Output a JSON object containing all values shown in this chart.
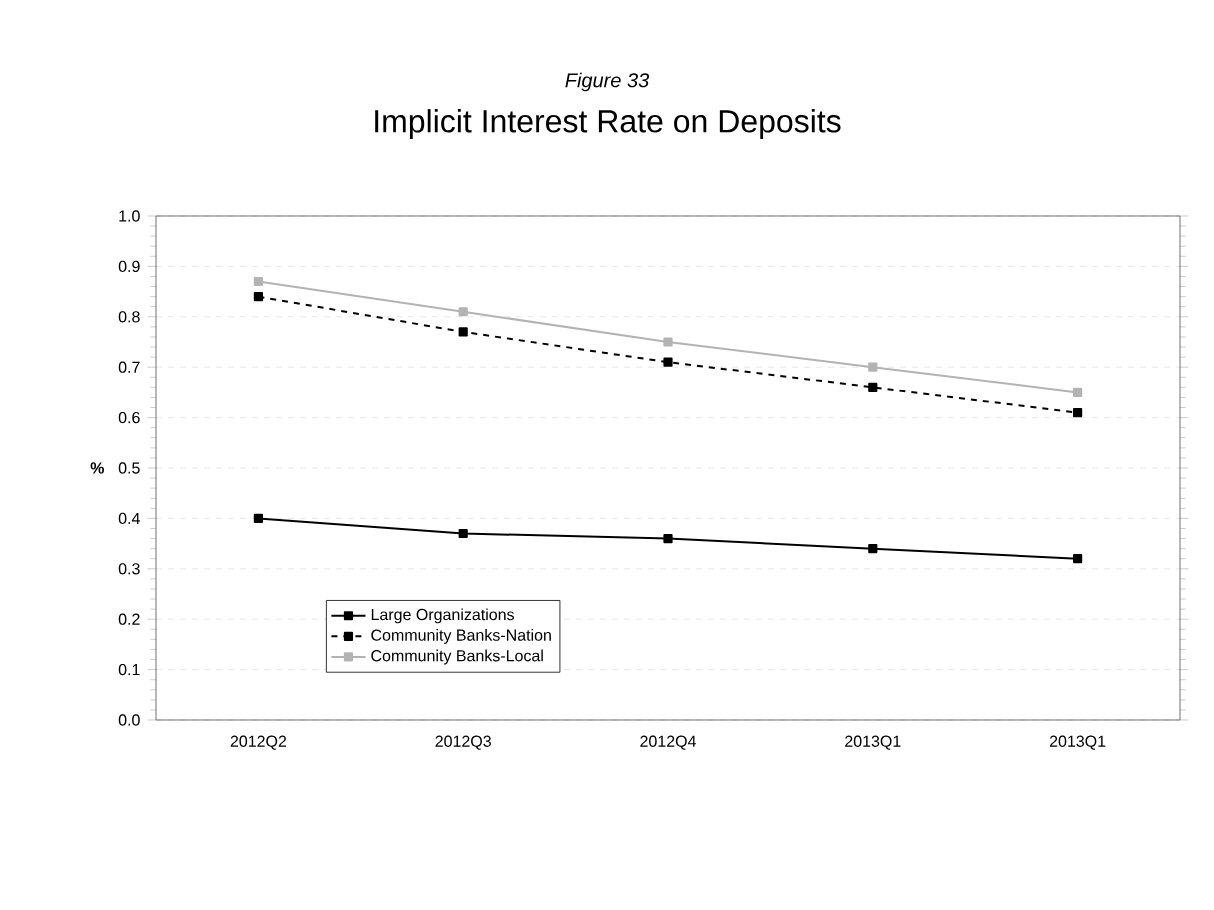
{
  "chart_data": {
    "type": "line",
    "subtitle": "Figure 33",
    "title": "Implicit Interest Rate on Deposits",
    "ylabel": "%",
    "categories": [
      "2012Q2",
      "2012Q3",
      "2012Q4",
      "2013Q1",
      "2013Q1"
    ],
    "series": [
      {
        "name": "Large Organizations",
        "color": "#000000",
        "line_style": "solid",
        "values": [
          0.4,
          0.37,
          0.36,
          0.34,
          0.32
        ]
      },
      {
        "name": "Community Banks-Nation",
        "color": "#000000",
        "line_style": "dashed",
        "values": [
          0.84,
          0.77,
          0.71,
          0.66,
          0.61
        ]
      },
      {
        "name": "Community Banks-Local",
        "color": "#b3b3b3",
        "line_style": "solid",
        "values": [
          0.87,
          0.81,
          0.75,
          0.7,
          0.65
        ]
      }
    ],
    "ylim": [
      0,
      1.0
    ],
    "yticks": [
      {
        "value": 0,
        "label": "0.0"
      },
      0.1,
      0.2,
      0.3,
      0.4,
      0.5,
      0.6,
      0.7,
      0.8,
      0.9,
      {
        "value": 1,
        "label": "1.0"
      }
    ],
    "grid": "y",
    "legend": "bottom left",
    "marker": "square"
  }
}
